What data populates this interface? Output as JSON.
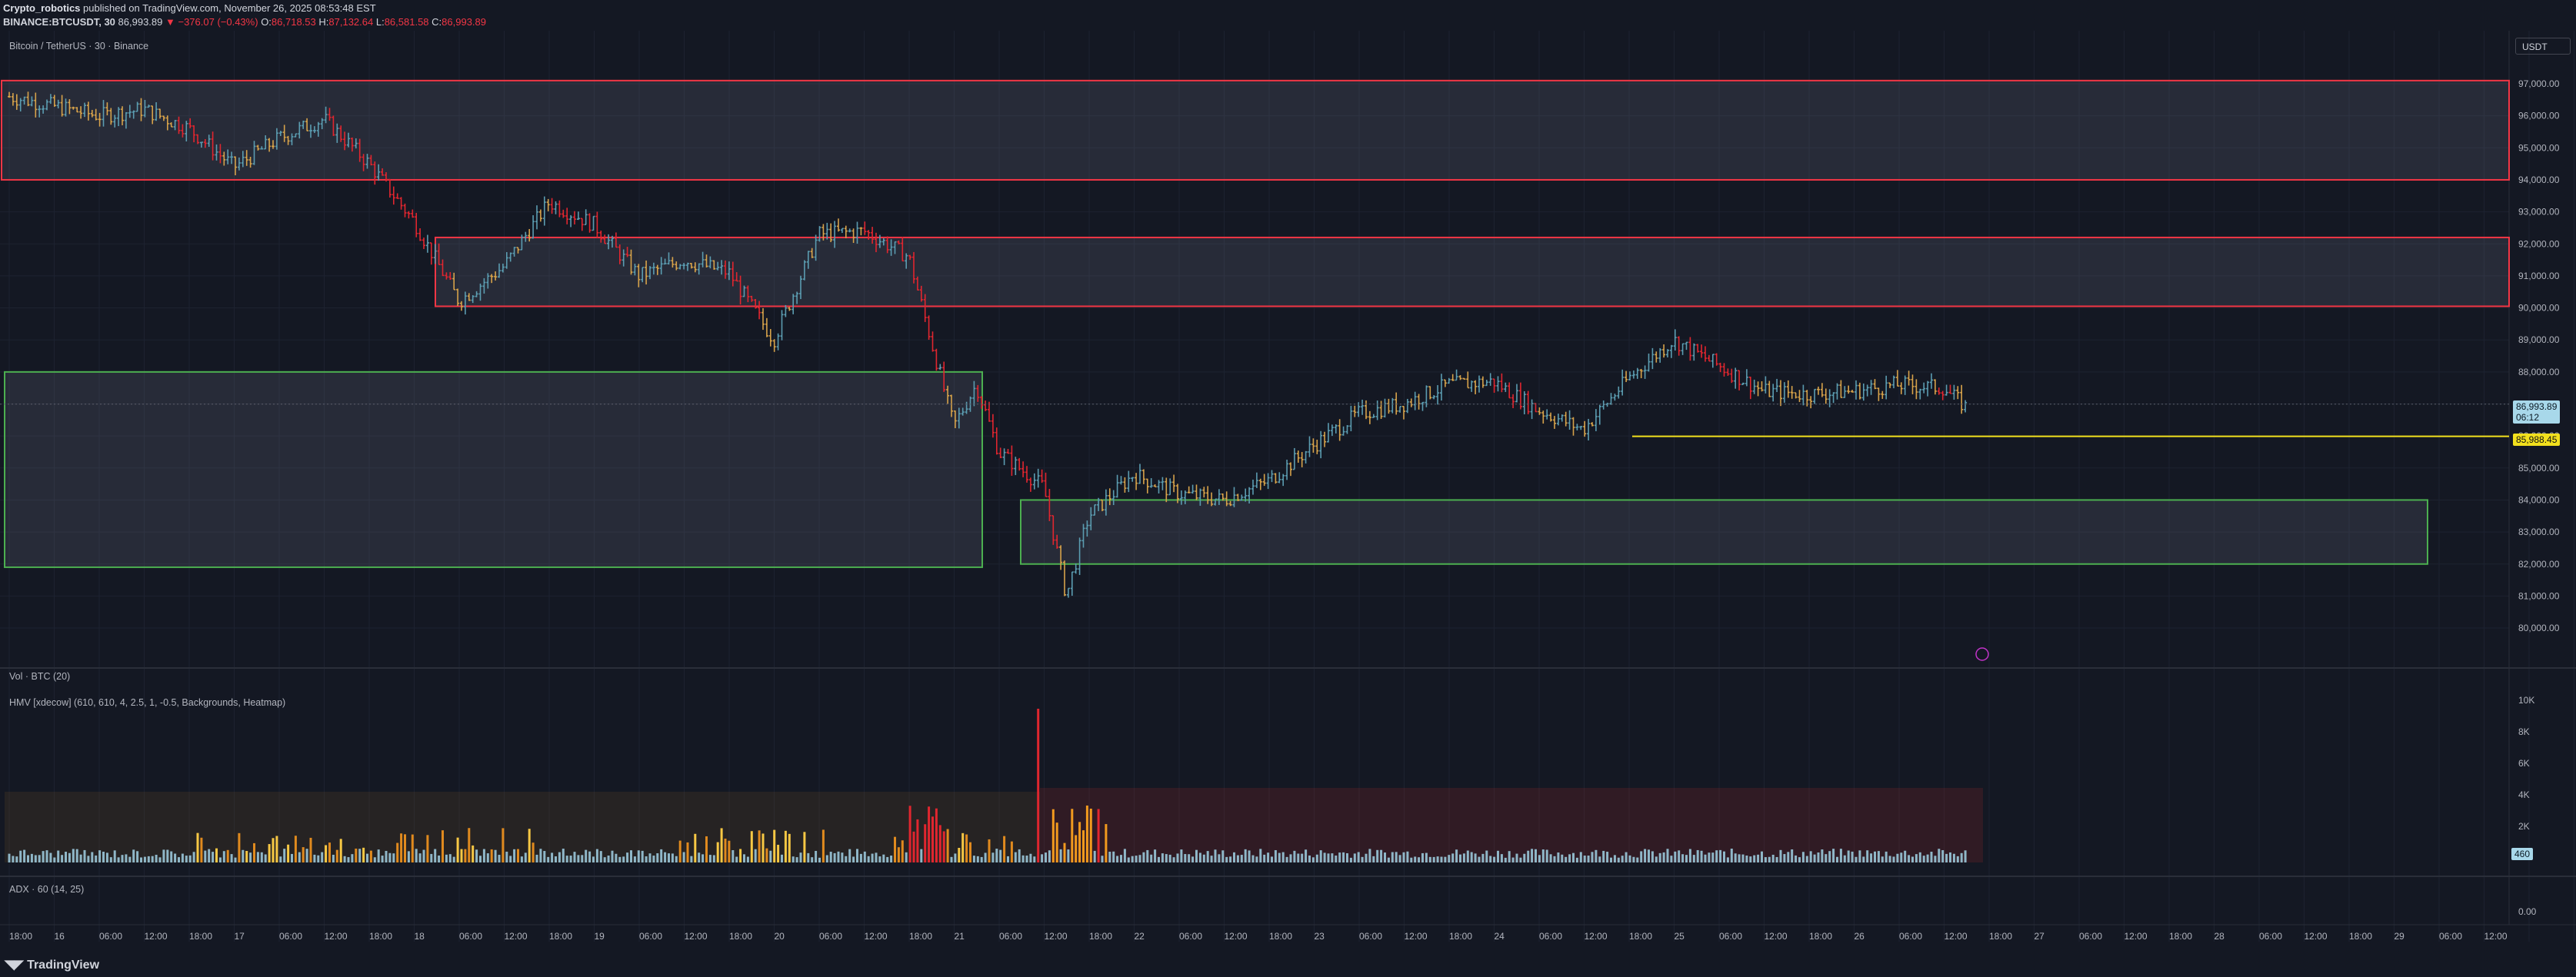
{
  "header": {
    "author": "Crypto_robotics",
    "published": "published on TradingView.com, November 26, 2025 08:53:48 EST",
    "symbol": "BINANCE:BTCUSDT, 30",
    "last": "86,993.89",
    "change": "▼ −376.07 (−0.43%)",
    "o_label": "O:",
    "o": "86,718.53",
    "h_label": "H:",
    "h": "87,132.64",
    "l_label": "L:",
    "l": "86,581.58",
    "c_label": "C:",
    "c": "86,993.89"
  },
  "chart": {
    "title": "Bitcoin / TetherUS · 30 · Binance",
    "currency_button": "USDT",
    "price_axis": [
      "97,000.00",
      "96,000.00",
      "95,000.00",
      "94,000.00",
      "93,000.00",
      "92,000.00",
      "91,000.00",
      "90,000.00",
      "89,000.00",
      "88,000.00",
      "87,000.00",
      "86,000.00",
      "85,000.00",
      "84,000.00",
      "83,000.00",
      "82,000.00",
      "81,000.00",
      "80,000.00"
    ],
    "last_price_tag": "86,993.89",
    "countdown_tag": "06:12",
    "level_tag": "85,988.45",
    "colors": {
      "up": "#5b9cb0",
      "down": "#d6a24a",
      "bearish": "#e0262f",
      "red_zone": "#f23645",
      "green_zone": "#4caf50",
      "level": "#f2e01d",
      "bg": "#141823"
    }
  },
  "chart_data": {
    "type": "candlestick",
    "symbol": "BINANCE:BTCUSDT",
    "interval": "30",
    "ylim": [
      79500,
      97300
    ],
    "zones": [
      {
        "color": "red",
        "low": 94000,
        "high": 97100
      },
      {
        "color": "red",
        "low": 90050,
        "high": 92200
      },
      {
        "color": "green",
        "low": 81900,
        "high": 88000
      },
      {
        "color": "green",
        "low": 82000,
        "high": 84000
      }
    ],
    "horizontal_level": 85988.45,
    "price_path": [
      {
        "t": "15 18:00",
        "p": 96600
      },
      {
        "t": "16 06:00",
        "p": 96000
      },
      {
        "t": "16 12:00",
        "p": 96200
      },
      {
        "t": "16 18:00",
        "p": 95600
      },
      {
        "t": "17 00:00",
        "p": 94400
      },
      {
        "t": "17 06:00",
        "p": 95300
      },
      {
        "t": "17 12:00",
        "p": 95900
      },
      {
        "t": "17 18:00",
        "p": 94500
      },
      {
        "t": "18 00:00",
        "p": 92700
      },
      {
        "t": "18 06:00",
        "p": 90200
      },
      {
        "t": "18 12:00",
        "p": 91300
      },
      {
        "t": "18 18:00",
        "p": 93300
      },
      {
        "t": "19 00:00",
        "p": 92600
      },
      {
        "t": "19 06:00",
        "p": 91000
      },
      {
        "t": "19 12:00",
        "p": 91500
      },
      {
        "t": "19 18:00",
        "p": 91100
      },
      {
        "t": "20 00:00",
        "p": 89000
      },
      {
        "t": "20 06:00",
        "p": 92300
      },
      {
        "t": "20 12:00",
        "p": 92400
      },
      {
        "t": "20 18:00",
        "p": 91600
      },
      {
        "t": "21 00:00",
        "p": 86300
      },
      {
        "t": "21 03:00",
        "p": 87600
      },
      {
        "t": "21 06:00",
        "p": 85500
      },
      {
        "t": "21 12:00",
        "p": 84400
      },
      {
        "t": "21 15:00",
        "p": 81000
      },
      {
        "t": "21 18:00",
        "p": 83500
      },
      {
        "t": "22 00:00",
        "p": 84800
      },
      {
        "t": "22 06:00",
        "p": 84200
      },
      {
        "t": "22 12:00",
        "p": 84000
      },
      {
        "t": "22 18:00",
        "p": 84600
      },
      {
        "t": "23 00:00",
        "p": 85700
      },
      {
        "t": "23 06:00",
        "p": 86700
      },
      {
        "t": "23 12:00",
        "p": 87000
      },
      {
        "t": "23 18:00",
        "p": 87600
      },
      {
        "t": "24 00:00",
        "p": 87700
      },
      {
        "t": "24 06:00",
        "p": 86800
      },
      {
        "t": "24 12:00",
        "p": 86200
      },
      {
        "t": "24 18:00",
        "p": 87800
      },
      {
        "t": "25 00:00",
        "p": 89000
      },
      {
        "t": "25 06:00",
        "p": 88200
      },
      {
        "t": "25 12:00",
        "p": 87400
      },
      {
        "t": "25 18:00",
        "p": 87300
      },
      {
        "t": "26 00:00",
        "p": 87400
      },
      {
        "t": "26 06:00",
        "p": 87600
      },
      {
        "t": "26 12:00",
        "p": 87500
      },
      {
        "t": "26 15:00",
        "p": 86900
      }
    ],
    "volume_axis": [
      "10K",
      "8K",
      "6K",
      "4K",
      "2K"
    ],
    "volume_last": "460",
    "adx_value": "0.00"
  },
  "indicators": {
    "vol": "Vol · BTC (20)",
    "hmv": "HMV [xdecow] (610, 610, 4, 2.5, 1, -0.5, Backgrounds, Heatmap)",
    "adx": "ADX · 60 (14, 25)"
  },
  "time_axis": [
    "18:00",
    "16",
    "06:00",
    "12:00",
    "18:00",
    "17",
    "06:00",
    "12:00",
    "18:00",
    "18",
    "06:00",
    "12:00",
    "18:00",
    "19",
    "06:00",
    "12:00",
    "18:00",
    "20",
    "06:00",
    "12:00",
    "18:00",
    "21",
    "06:00",
    "12:00",
    "18:00",
    "22",
    "06:00",
    "12:00",
    "18:00",
    "23",
    "06:00",
    "12:00",
    "18:00",
    "24",
    "06:00",
    "12:00",
    "18:00",
    "25",
    "06:00",
    "12:00",
    "18:00",
    "26",
    "06:00",
    "12:00",
    "18:00",
    "27",
    "06:00",
    "12:00",
    "18:00",
    "28",
    "06:00",
    "12:00",
    "18:00",
    "29",
    "06:00",
    "12:00"
  ],
  "footer": {
    "logo": "TradingView"
  }
}
